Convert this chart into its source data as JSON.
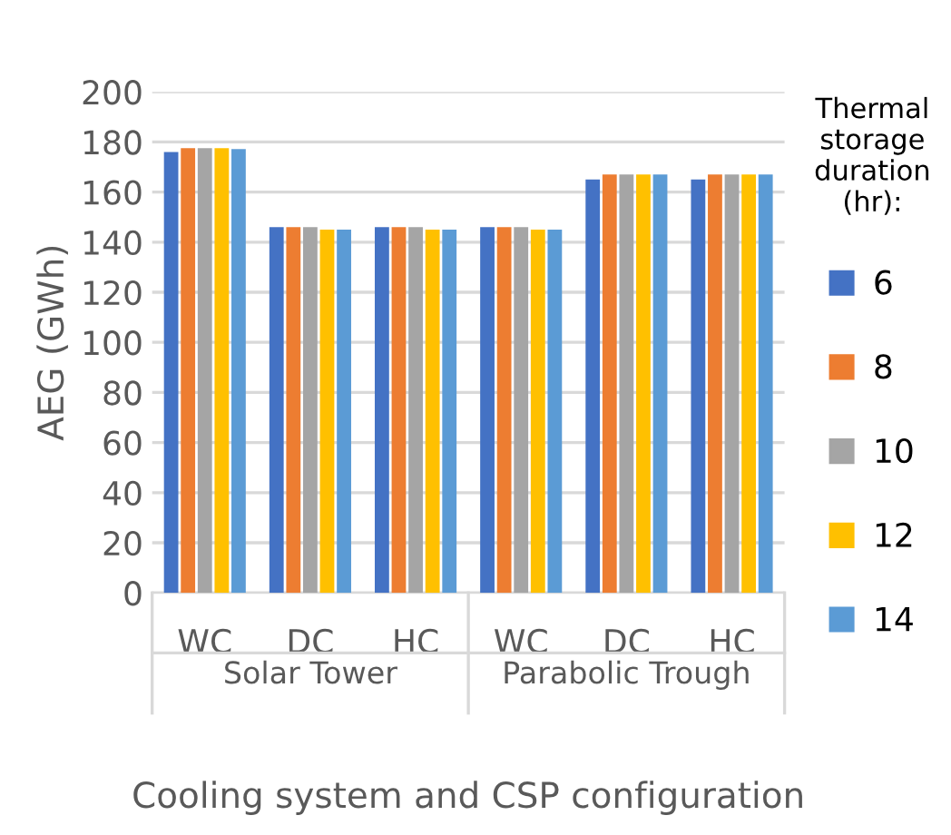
{
  "chart_data": {
    "type": "bar",
    "xlabel": "Cooling system and CSP configuration",
    "ylabel": "AEG (GWh)",
    "categories": [
      "WC",
      "DC",
      "HC",
      "WC",
      "DC",
      "HC"
    ],
    "annotations": [
      "Solar Tower",
      "Parabolic Trough"
    ],
    "legend_title": "Thermal storage duration (hr):",
    "series": [
      {
        "name": "6",
        "color": "#4472c4",
        "values": [
          176,
          146,
          146,
          146,
          165,
          165
        ]
      },
      {
        "name": "8",
        "color": "#ed7d31",
        "values": [
          177.5,
          146,
          146,
          146,
          167,
          167
        ]
      },
      {
        "name": "10",
        "color": "#a5a5a5",
        "values": [
          177.5,
          146,
          146,
          146,
          167,
          167
        ]
      },
      {
        "name": "12",
        "color": "#ffc000",
        "values": [
          177.5,
          145,
          145,
          145,
          167,
          167
        ]
      },
      {
        "name": "14",
        "color": "#5b9bd5",
        "values": [
          177.2,
          145,
          145,
          145,
          167,
          167
        ]
      }
    ],
    "ylim": [
      0,
      200
    ],
    "yticks": [
      0,
      20,
      40,
      60,
      80,
      100,
      120,
      140,
      160,
      180,
      200
    ],
    "grid": "y",
    "legend": "right"
  }
}
